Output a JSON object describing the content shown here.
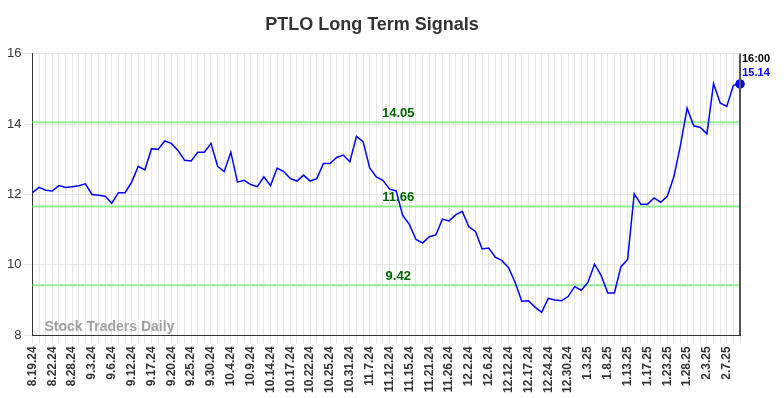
{
  "chart_data": {
    "type": "line",
    "title": "PTLO Long Term Signals",
    "categories": [
      "8.19.24",
      null,
      null,
      "8.22.24",
      null,
      null,
      "8.28.24",
      null,
      null,
      "9.3.24",
      null,
      null,
      "9.6.24",
      null,
      null,
      "9.12.24",
      null,
      null,
      "9.17.24",
      null,
      null,
      "9.20.24",
      null,
      null,
      "9.25.24",
      null,
      null,
      "9.30.24",
      null,
      null,
      "10.4.24",
      null,
      null,
      "10.9.24",
      null,
      null,
      "10.14.24",
      null,
      null,
      "10.17.24",
      null,
      null,
      "10.22.24",
      null,
      null,
      "10.25.24",
      null,
      null,
      "10.31.24",
      null,
      null,
      "11.7.24",
      null,
      null,
      "11.12.24",
      null,
      null,
      "11.15.24",
      null,
      null,
      "11.21.24",
      null,
      null,
      "11.26.24",
      null,
      null,
      "12.2.24",
      null,
      null,
      "12.6.24",
      null,
      null,
      "12.12.24",
      null,
      null,
      "12.17.24",
      null,
      null,
      "12.24.24",
      null,
      null,
      "12.30.24",
      null,
      null,
      "1.3.25",
      null,
      null,
      "1.8.25",
      null,
      null,
      "1.13.25",
      null,
      null,
      "1.17.25",
      null,
      null,
      "1.23.25",
      null,
      null,
      "1.28.25",
      null,
      null,
      "2.3.25",
      null,
      null,
      "2.7.25",
      null,
      null
    ],
    "values": [
      12.05,
      12.2,
      12.12,
      12.1,
      12.25,
      12.2,
      12.22,
      12.25,
      12.3,
      12.0,
      11.98,
      11.95,
      11.75,
      12.05,
      12.05,
      12.35,
      12.8,
      12.7,
      13.3,
      13.28,
      13.52,
      13.45,
      13.25,
      12.97,
      12.95,
      13.2,
      13.2,
      13.45,
      12.8,
      12.65,
      13.2,
      12.35,
      12.4,
      12.28,
      12.22,
      12.5,
      12.25,
      12.75,
      12.65,
      12.45,
      12.38,
      12.55,
      12.38,
      12.45,
      12.88,
      12.88,
      13.05,
      13.12,
      12.93,
      13.65,
      13.5,
      12.75,
      12.5,
      12.4,
      12.15,
      12.1,
      11.4,
      11.15,
      10.72,
      10.62,
      10.8,
      10.85,
      11.3,
      11.25,
      11.42,
      11.52,
      11.08,
      10.95,
      10.45,
      10.48,
      10.22,
      10.12,
      9.92,
      9.5,
      8.97,
      8.98,
      8.8,
      8.65,
      9.05,
      9.0,
      8.98,
      9.1,
      9.38,
      9.28,
      9.5,
      10.02,
      9.7,
      9.2,
      9.2,
      9.95,
      10.15,
      12.02,
      11.72,
      11.72,
      11.9,
      11.78,
      11.95,
      12.5,
      13.4,
      14.45,
      13.95,
      13.9,
      13.72,
      15.15,
      14.6,
      14.5,
      15.1,
      15.14
    ],
    "color": "#0000ff",
    "ylim": [
      8,
      16
    ],
    "yticks": [
      8,
      10,
      12,
      14,
      16
    ],
    "grid": true,
    "hlines": [
      14.05,
      11.66,
      9.42
    ],
    "hline_color": "#90ee90",
    "hline_text_color": "#006400",
    "last_time_label": "16:00",
    "watermark": "Stock Traders Daily"
  }
}
